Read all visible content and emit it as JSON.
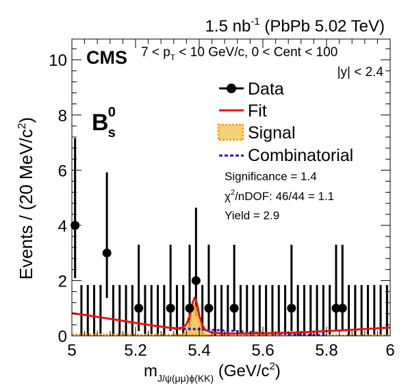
{
  "header": {
    "lumi_value": "1.5 nb",
    "lumi_exp": "-1",
    "lumi_rest": " (PbPb 5.02 TeV)"
  },
  "labels": {
    "cms": "CMS",
    "kin_a": "7 < p",
    "kin_pt_sub": "T",
    "kin_b": " < 10 GeV/c, 0 < Cent < 100",
    "rapidity": "|y| < 2.4",
    "particle_main": "B",
    "particle_sub": "s",
    "particle_sup": "0",
    "significance": "Significance = 1.4",
    "chi2_sym": "χ",
    "chi2_exp": "2",
    "chi2_rest": "/nDOF: 46/44 = 1.1",
    "yield": "Yield = 2.9"
  },
  "axes": {
    "y_label_main": "Events / (20 MeV/c",
    "y_label_sup": "2",
    "y_label_end": ")",
    "x_label_m": "m",
    "x_label_sub": "J/ψ(μμ)ϕ(KK)",
    "x_label_units": " (GeV/c",
    "x_label_sup": "2",
    "x_label_end": ")"
  },
  "legend": {
    "data": "Data",
    "fit": "Fit",
    "signal": "Signal",
    "combinatorial": "Combinatorial"
  },
  "colors": {
    "data": "#000000",
    "fit": "#ee1111",
    "signal_fill": "#f0c050",
    "signal_line": "#ff9900",
    "combinatorial": "#1a1acc"
  },
  "chart_data": {
    "type": "scatter",
    "xlim": [
      5.0,
      6.0
    ],
    "ylim": [
      0,
      10.75
    ],
    "x_ticks": [
      5,
      5.2,
      5.4,
      5.6,
      5.8,
      6
    ],
    "x_tick_labels": [
      "5",
      "5.2",
      "5.4",
      "5.6",
      "5.8",
      "6"
    ],
    "y_ticks": [
      0,
      2,
      4,
      6,
      8,
      10
    ],
    "y_tick_labels": [
      "0",
      "2",
      "4",
      "6",
      "8",
      "10"
    ],
    "data_points": [
      {
        "x": 5.01,
        "y": 4,
        "err_low": 1.91,
        "err_high": 3.16
      },
      {
        "x": 5.11,
        "y": 3,
        "err_low": 1.63,
        "err_high": 2.92
      },
      {
        "x": 5.21,
        "y": 1,
        "err_low": 0.83,
        "err_high": 2.3
      },
      {
        "x": 5.31,
        "y": 1,
        "err_low": 0.83,
        "err_high": 2.3
      },
      {
        "x": 5.37,
        "y": 1,
        "err_low": 0.83,
        "err_high": 2.3
      },
      {
        "x": 5.39,
        "y": 2,
        "err_low": 1.29,
        "err_high": 2.64
      },
      {
        "x": 5.43,
        "y": 1,
        "err_low": 0.83,
        "err_high": 2.3
      },
      {
        "x": 5.51,
        "y": 1,
        "err_low": 0.83,
        "err_high": 2.3
      },
      {
        "x": 5.69,
        "y": 1,
        "err_low": 0.83,
        "err_high": 2.3
      },
      {
        "x": 5.83,
        "y": 1,
        "err_low": 0.83,
        "err_high": 2.3
      },
      {
        "x": 5.85,
        "y": 1,
        "err_low": 0.83,
        "err_high": 2.3
      }
    ],
    "empty_bin_error_high": 1.84,
    "bin_width": 0.02,
    "fit_curve": {
      "x": [
        5.0,
        5.05,
        5.1,
        5.15,
        5.2,
        5.25,
        5.3,
        5.33,
        5.35,
        5.36,
        5.37,
        5.375,
        5.38,
        5.385,
        5.39,
        5.395,
        5.4,
        5.41,
        5.42,
        5.44,
        5.47,
        5.5,
        5.55,
        5.6,
        5.7,
        5.8,
        5.9,
        6.0
      ],
      "y": [
        0.82,
        0.74,
        0.65,
        0.56,
        0.47,
        0.38,
        0.3,
        0.27,
        0.3,
        0.42,
        0.72,
        0.98,
        1.22,
        1.36,
        1.3,
        1.05,
        0.75,
        0.38,
        0.2,
        0.12,
        0.09,
        0.08,
        0.08,
        0.09,
        0.12,
        0.17,
        0.23,
        0.3
      ]
    },
    "signal_curve": {
      "x": [
        5.33,
        5.35,
        5.36,
        5.37,
        5.375,
        5.38,
        5.385,
        5.39,
        5.395,
        5.4,
        5.41,
        5.42,
        5.44
      ],
      "y": [
        0.0,
        0.06,
        0.2,
        0.5,
        0.78,
        1.0,
        1.12,
        1.06,
        0.82,
        0.55,
        0.18,
        0.05,
        0.0
      ]
    },
    "combinatorial_curve": {
      "x": [
        5.32,
        5.36,
        5.4,
        5.43,
        5.45,
        5.5,
        5.55,
        5.6,
        5.65,
        5.7,
        5.75,
        5.8
      ],
      "y": [
        0.26,
        0.25,
        0.24,
        0.22,
        0.21,
        0.18,
        0.14,
        0.1,
        0.08,
        0.05,
        0.03,
        0.02
      ]
    },
    "background_curve": {
      "x": [
        5.0,
        5.1,
        5.2,
        5.3,
        5.4,
        5.5,
        5.6,
        5.7,
        5.8,
        5.9,
        6.0
      ],
      "y": [
        0.05,
        0.05,
        0.04,
        0.04,
        0.03,
        0.03,
        0.03,
        0.03,
        0.02,
        0.02,
        0.02
      ]
    }
  }
}
